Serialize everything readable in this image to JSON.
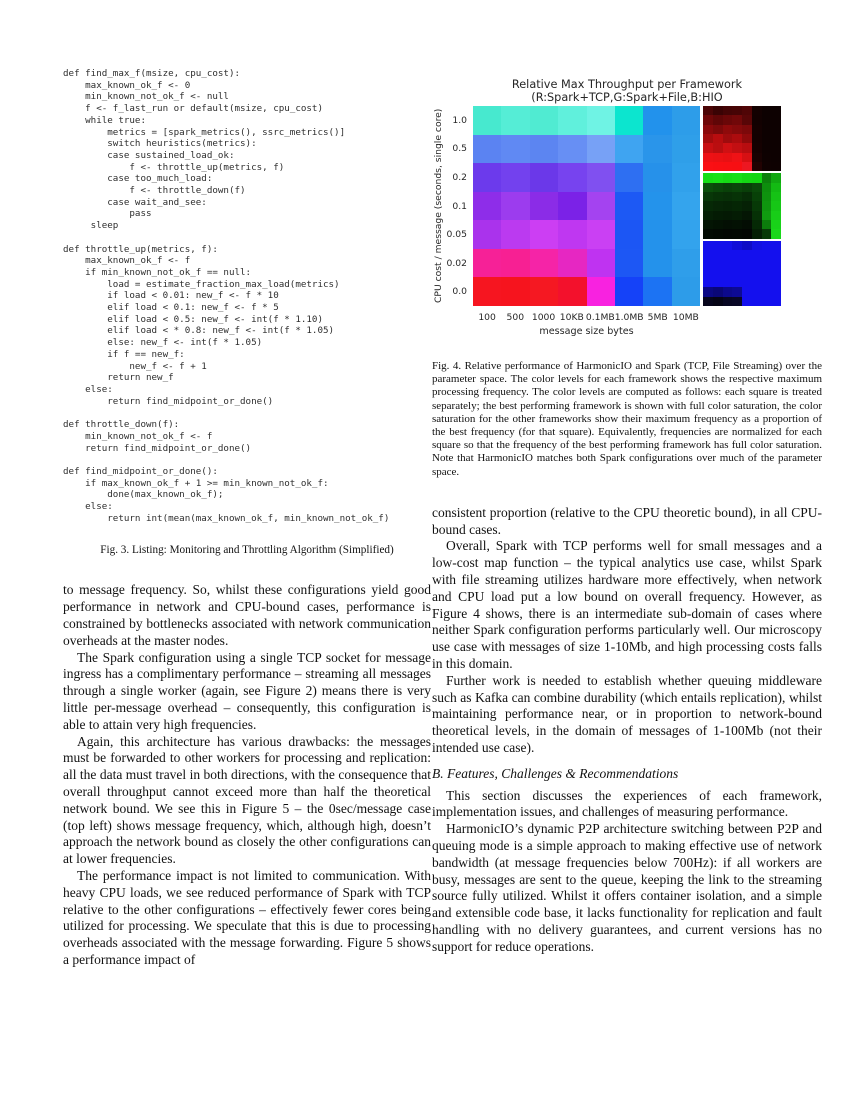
{
  "left_column": {
    "code_listing": "def find_max_f(msize, cpu_cost):\n    max_known_ok_f <- 0\n    min_known_not_ok_f <- null\n    f <- f_last_run or default(msize, cpu_cost)\n    while true:\n        metrics = [spark_metrics(), ssrc_metrics()]\n        switch heuristics(metrics):\n        case sustained_load_ok:\n            f <- throttle_up(metrics, f)\n        case too_much_load:\n            f <- throttle_down(f)\n        case wait_and_see:\n            pass\n     sleep\n\ndef throttle_up(metrics, f):\n    max_known_ok_f <- f\n    if min_known_not_ok_f == null:\n        load = estimate_fraction_max_load(metrics)\n        if load < 0.01: new_f <- f * 10\n        elif load < 0.1: new_f <- f * 5\n        elif load < 0.5: new_f <- int(f * 1.10)\n        elif load < * 0.8: new_f <- int(f * 1.05)\n        else: new_f <- int(f * 1.05)\n        if f == new_f:\n            new_f <- f + 1\n        return new_f\n    else:\n        return find_midpoint_or_done()\n\ndef throttle_down(f):\n    min_known_not_ok_f <- f\n    return find_midpoint_or_done()\n\ndef find_midpoint_or_done():\n    if max_known_ok_f + 1 >= min_known_not_ok_f:\n        done(max_known_ok_f);\n    else:\n        return int(mean(max_known_ok_f, min_known_not_ok_f)",
    "fig3_caption": "Fig. 3.   Listing: Monitoring and Throttling Algorithm (Simplified)",
    "paragraphs": [
      "to message frequency. So, whilst these configurations yield good performance in network and CPU-bound cases, performance is constrained by bottlenecks associated with network communication overheads at the master nodes.",
      "The Spark configuration using a single TCP socket for message ingress has a complimentary performance – streaming all messages through a single worker (again, see Figure 2) means there is very little per-message overhead – consequently, this configuration is able to attain very high frequencies.",
      "Again, this architecture has various drawbacks: the messages must be forwarded to other workers for processing and replication: all the data must travel in both directions, with the consequence that overall throughput cannot exceed more than half the theoretical network bound. We see this in Figure 5 – the 0sec/message case (top left) shows message frequency, which, although high, doesn’t approach the network bound as closely the other configurations can at lower frequencies.",
      "The performance impact is not limited to communication. With heavy CPU loads, we see reduced performance of Spark with TCP relative to the other configurations – effectively fewer cores being utilized for processing. We speculate that this is due to processing overheads associated with the message forwarding. Figure 5 shows a performance impact of"
    ]
  },
  "right_column": {
    "fig4_caption": "Fig. 4.   Relative performance of HarmonicIO and Spark (TCP, File Streaming) over the parameter space. The color levels for each framework shows the respective maximum processing frequency. The color levels are computed as follows: each square is treated separately; the best performing framework is shown with full color saturation, the color saturation for the other frameworks show their maximum frequency as a proportion of the best frequency (for that square). Equivalently, frequencies are normalized for each square so that the frequency of the best performing framework has full color saturation. Note that HarmonicIO matches both Spark configurations over much of the parameter space.",
    "paragraphs_before_heading": [
      "consistent proportion (relative to the CPU theoretic bound), in all CPU-bound cases.",
      "Overall, Spark with TCP performs well for small messages and a low-cost map function – the typical analytics use case, whilst Spark with file streaming utilizes hardware more effectively, when network and CPU load put a low bound on overall frequency. However, as Figure 4 shows, there is an intermediate sub-domain of cases where neither Spark configuration performs particularly well. Our microscopy use case with messages of size 1-10Mb, and high processing costs falls in this domain.",
      "Further work is needed to establish whether queuing middleware such as Kafka can combine durability (which entails replication), whilst maintaining performance near, or in proportion to network-bound theoretical levels, in the domain of messages of 1-100Mb (not their intended use case)."
    ],
    "section_heading": "B. Features, Challenges & Recommendations",
    "paragraphs_after_heading": [
      "This section discusses the experiences of each framework, implementation issues, and challenges of measuring performance.",
      "HarmonicIO’s dynamic P2P architecture switching between P2P and queuing mode is a simple approach to making effective use of network bandwidth (at message frequencies below 700Hz): if all workers are busy, messages are sent to the queue, keeping the link to the streaming source fully utilized. Whilst it offers container isolation, and a simple and extensible code base, it lacks functionality for replication and fault handling with no delivery guarantees, and current versions has no support for reduce operations."
    ]
  },
  "chart_data": {
    "type": "heatmap",
    "title": "Relative Max Throughput per Framework",
    "subtitle": "(R:Spark+TCP,G:Spark+File,B:HIO",
    "xlabel": "message size bytes",
    "ylabel": "CPU cost / message (seconds, single core)",
    "x_ticks": [
      "100",
      "500",
      "1000",
      "10KB",
      "0.1MB",
      "1.0MB",
      "5MB",
      "10MB"
    ],
    "y_ticks": [
      "1.0",
      "0.5",
      "0.2",
      "0.1",
      "0.05",
      "0.02",
      "0.0"
    ],
    "channels": [
      {
        "channel": "R",
        "framework": "Spark+TCP"
      },
      {
        "channel": "G",
        "framework": "Spark+File"
      },
      {
        "channel": "B",
        "framework": "HIO"
      }
    ],
    "legend_position": "none",
    "grid": "off",
    "main_grid_colors": [
      [
        "#47e9cf",
        "#55edd6",
        "#50ebd2",
        "#60f0dc",
        "#6ff3e4",
        "#0ce5cf",
        "#2292ec",
        "#2d9de9"
      ],
      [
        "#5b83f2",
        "#6089f3",
        "#5c85f1",
        "#678ff4",
        "#77a1f6",
        "#3fa4f1",
        "#2a95ea",
        "#2f9fe9"
      ],
      [
        "#6c3aec",
        "#7341ee",
        "#6b38e9",
        "#7743ef",
        "#8050f0",
        "#2e6ff2",
        "#2691ea",
        "#31a1eb"
      ],
      [
        "#8e2de9",
        "#9c3cee",
        "#8b2ce7",
        "#7b22e7",
        "#a443f0",
        "#1d59f4",
        "#2493eb",
        "#34a4ed"
      ],
      [
        "#aa33ec",
        "#bb3af0",
        "#cc3ef3",
        "#bf37f1",
        "#ca40f3",
        "#1c56f4",
        "#2492eb",
        "#33a3ed"
      ],
      [
        "#f62197",
        "#f72093",
        "#f524a7",
        "#e627c2",
        "#bf33f1",
        "#1d57f4",
        "#2492eb",
        "#2f9eea"
      ],
      [
        "#f61520",
        "#f6141e",
        "#f51822",
        "#f3112c",
        "#f822e0",
        "#1542f8",
        "#1c73f3",
        "#2d9ce9"
      ]
    ],
    "insets": [
      {
        "name": "Spark+TCP red channel",
        "colors": [
          [
            "#4c0506",
            "#3a0304",
            "#440405",
            "#470405",
            "#500506",
            "#130101",
            "#0d0101",
            "#0d0101"
          ],
          [
            "#6f0708",
            "#600607",
            "#6a0708",
            "#710809",
            "#580607",
            "#120101",
            "#0d0101",
            "#0d0101"
          ],
          [
            "#8b090b",
            "#7d090a",
            "#8f0a0b",
            "#850a0b",
            "#7c090a",
            "#140101",
            "#0d0101",
            "#0d0101"
          ],
          [
            "#a30c0d",
            "#b80d0f",
            "#9f0b0d",
            "#ac0c0e",
            "#8f0a0b",
            "#130101",
            "#0d0101",
            "#0d0101"
          ],
          [
            "#c80f12",
            "#ba0e10",
            "#d01013",
            "#c30f12",
            "#b80d10",
            "#150101",
            "#0d0101",
            "#0d0101"
          ],
          [
            "#ee1115",
            "#eb1114",
            "#e81013",
            "#ef1216",
            "#d71013",
            "#190202",
            "#0e0101",
            "#0d0101"
          ],
          [
            "#fa1014",
            "#f90f13",
            "#f80f13",
            "#f70f13",
            "#ed1721",
            "#220202",
            "#0f0101",
            "#0e0101"
          ]
        ]
      },
      {
        "name": "Spark+File green channel",
        "colors": [
          [
            "#16de16",
            "#18e118",
            "#15dc15",
            "#17df17",
            "#14d714",
            "#13d513",
            "#0c800c",
            "#11a811"
          ],
          [
            "#0b4e0b",
            "#0a470a",
            "#094109",
            "#0a450a",
            "#093f09",
            "#0a490a",
            "#0d8e0d",
            "#13ba13"
          ],
          [
            "#083708",
            "#073207",
            "#072f07",
            "#073307",
            "#062c06",
            "#084108",
            "#0e920e",
            "#15c215"
          ],
          [
            "#062906",
            "#062506",
            "#052305",
            "#052605",
            "#052105",
            "#073907",
            "#0f960f",
            "#16c716"
          ],
          [
            "#051f05",
            "#041b04",
            "#041904",
            "#041c04",
            "#041604",
            "#063106",
            "#109c10",
            "#18cd18"
          ],
          [
            "#041504",
            "#031203",
            "#030f03",
            "#031103",
            "#030d03",
            "#052905",
            "#0c7c0c",
            "#19d219"
          ],
          [
            "#030b03",
            "#020902",
            "#020702",
            "#020802",
            "#020602",
            "#041f04",
            "#073a07",
            "#1ad81a"
          ]
        ]
      },
      {
        "name": "HIO blue channel",
        "colors": [
          [
            "#1310ea",
            "#1310ea",
            "#1310ea",
            "#100dd8",
            "#0e0bc6",
            "#1210e2",
            "#1310ea",
            "#1310ea"
          ],
          [
            "#1410ee",
            "#1410ee",
            "#1410ee",
            "#1410ee",
            "#1410ee",
            "#1410ee",
            "#1410ee",
            "#1410ee"
          ],
          [
            "#1410ee",
            "#1410ee",
            "#1410ee",
            "#1410ee",
            "#1410ee",
            "#1410ee",
            "#1410ee",
            "#1410ee"
          ],
          [
            "#1410ee",
            "#1410ee",
            "#1410ee",
            "#1410ee",
            "#1410ee",
            "#1410ee",
            "#1410ee",
            "#1410ee"
          ],
          [
            "#1410ee",
            "#1410ee",
            "#1410ee",
            "#1410ee",
            "#1410ee",
            "#1410ee",
            "#1410ee",
            "#1410ee"
          ],
          [
            "#0b0884",
            "#0a0778",
            "#0c098c",
            "#0d0a94",
            "#1410ee",
            "#1410ee",
            "#1410ee",
            "#1410ee"
          ],
          [
            "#06051c",
            "#050416",
            "#070622",
            "#080726",
            "#1410ee",
            "#1410ee",
            "#1410ee",
            "#1410ee"
          ]
        ]
      }
    ]
  }
}
